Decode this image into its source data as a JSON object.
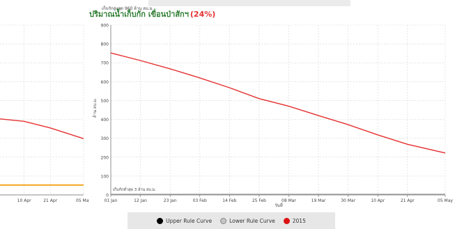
{
  "chart_data": [
    {
      "type": "line",
      "title": "ปริมาณน้ำเก็บกัก เขื่อนป่าสักฯ",
      "title_percent": "(24%)",
      "xlabel": "วันที่",
      "ylabel": "ล้าน ลบ.ม.",
      "ylim": [
        0,
        900
      ],
      "yticks": [
        0,
        100,
        200,
        300,
        400,
        500,
        600,
        700,
        800,
        900
      ],
      "xlim": [
        "2015-01-01",
        "2015-05-05"
      ],
      "xticks": [
        {
          "date": "2015-01-01",
          "label": "01 Jan"
        },
        {
          "date": "2015-01-12",
          "label": "12 Jan"
        },
        {
          "date": "2015-01-23",
          "label": "23 Jan"
        },
        {
          "date": "2015-02-03",
          "label": "03 Feb"
        },
        {
          "date": "2015-02-14",
          "label": "14 Feb"
        },
        {
          "date": "2015-02-25",
          "label": "25 Feb"
        },
        {
          "date": "2015-03-08",
          "label": "08 Mar"
        },
        {
          "date": "2015-03-19",
          "label": "19 Mar"
        },
        {
          "date": "2015-03-30",
          "label": "30 Mar"
        },
        {
          "date": "2015-04-10",
          "label": "10 Apr"
        },
        {
          "date": "2015-04-21",
          "label": "21 Apr"
        },
        {
          "date": "2015-05-05",
          "label": "05 May"
        }
      ],
      "grid": true,
      "annotations": [
        {
          "text": "เก็บกักสูงสุด 960 ล้าน ลบ.ม.",
          "y": 900
        },
        {
          "text": "เก็บกักต่ำสุด 3 ล้าน ลบ.ม.",
          "y": 3
        }
      ],
      "series": [
        {
          "name": "2015",
          "color": "#e53030",
          "points": [
            {
              "x": "2015-01-01",
              "y": 752
            },
            {
              "x": "2015-01-12",
              "y": 712
            },
            {
              "x": "2015-01-23",
              "y": 668
            },
            {
              "x": "2015-02-03",
              "y": 620
            },
            {
              "x": "2015-02-14",
              "y": 568
            },
            {
              "x": "2015-02-25",
              "y": 510
            },
            {
              "x": "2015-03-08",
              "y": 470
            },
            {
              "x": "2015-03-19",
              "y": 420
            },
            {
              "x": "2015-03-30",
              "y": 372
            },
            {
              "x": "2015-04-10",
              "y": 318
            },
            {
              "x": "2015-04-21",
              "y": 268
            },
            {
              "x": "2015-05-05",
              "y": 222
            }
          ]
        },
        {
          "name": "Upper Rule Curve",
          "color": "#000000",
          "points": [
            {
              "x": "2015-01-01",
              "y": 3
            },
            {
              "x": "2015-05-05",
              "y": 3
            }
          ]
        },
        {
          "name": "Lower Rule Curve",
          "color": "#aaaaaa",
          "points": [
            {
              "x": "2015-01-01",
              "y": 3
            },
            {
              "x": "2015-05-05",
              "y": 3
            }
          ]
        }
      ]
    },
    {
      "type": "line",
      "xticks": [
        {
          "date": "2015-04-10",
          "label": "10 Apr"
        },
        {
          "date": "2015-04-21",
          "label": "21 Apr"
        },
        {
          "date": "2015-05-05",
          "label": "05 May"
        }
      ],
      "grid": true,
      "series": [
        {
          "name": "partial-red",
          "color": "#e53030",
          "points": [
            {
              "x": "2015-03-25",
              "y": 410
            },
            {
              "x": "2015-04-10",
              "y": 390
            },
            {
              "x": "2015-04-21",
              "y": 355
            },
            {
              "x": "2015-05-05",
              "y": 298
            }
          ]
        },
        {
          "name": "partial-orange",
          "color": "#f5a623",
          "points": [
            {
              "x": "2015-03-25",
              "y": 52
            },
            {
              "x": "2015-05-05",
              "y": 52
            }
          ]
        }
      ]
    }
  ],
  "legend": {
    "items": [
      {
        "label": "Upper Rule Curve",
        "color": "#000000"
      },
      {
        "label": "Lower Rule Curve",
        "color": "#bbbbbb"
      },
      {
        "label": "2015",
        "color": "#dd1111"
      }
    ]
  }
}
